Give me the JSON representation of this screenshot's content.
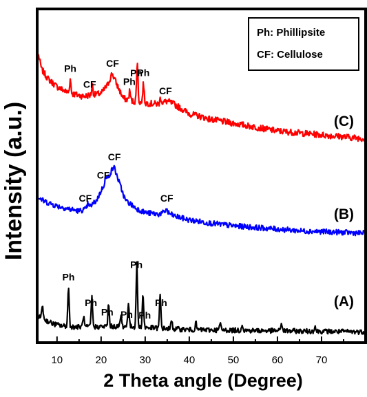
{
  "chart_data": {
    "type": "line",
    "xlabel": "2 Theta angle (Degree)",
    "ylabel": "Intensity (a.u.)",
    "xlim": [
      5.5,
      80
    ],
    "xticks": [
      10,
      20,
      30,
      40,
      50,
      60,
      70
    ],
    "yticks": "none",
    "grid": false,
    "legend": {
      "placement": "top-right",
      "entries": [
        "Ph: Phillipsite",
        "CF: Cellulose"
      ]
    },
    "series": [
      {
        "name": "(C)",
        "color": "#ff0000",
        "peaks": [
          [
            13.0,
            "Ph"
          ],
          [
            18.0,
            "CF"
          ],
          [
            22.5,
            "CF"
          ],
          [
            26.5,
            "Ph"
          ],
          [
            28.2,
            "Ph"
          ],
          [
            29.6,
            "Ph"
          ],
          [
            33.5,
            "CF"
          ]
        ],
        "profile": [
          [
            5.8,
            0.93
          ],
          [
            6.5,
            0.78
          ],
          [
            8,
            0.68
          ],
          [
            10,
            0.6
          ],
          [
            12,
            0.55
          ],
          [
            14,
            0.52
          ],
          [
            16,
            0.5
          ],
          [
            20,
            0.53
          ],
          [
            21.5,
            0.62
          ],
          [
            22.5,
            0.74
          ],
          [
            23.5,
            0.63
          ],
          [
            25,
            0.48
          ],
          [
            27,
            0.45
          ],
          [
            30,
            0.43
          ],
          [
            33,
            0.42
          ],
          [
            35,
            0.45
          ],
          [
            36.5,
            0.42
          ],
          [
            40,
            0.32
          ],
          [
            45,
            0.26
          ],
          [
            50,
            0.22
          ],
          [
            55,
            0.18
          ],
          [
            60,
            0.14
          ],
          [
            65,
            0.12
          ],
          [
            70,
            0.1
          ],
          [
            75,
            0.08
          ],
          [
            80,
            0.06
          ]
        ],
        "sharp_peaks": [
          [
            13.0,
            0.14
          ],
          [
            18.0,
            0.1
          ],
          [
            26.5,
            0.1
          ],
          [
            28.2,
            0.42
          ],
          [
            29.6,
            0.2
          ],
          [
            33.5,
            0.06
          ]
        ]
      },
      {
        "name": "(B)",
        "color": "#0000ff",
        "peaks": [
          [
            17.0,
            "CF"
          ],
          [
            21.0,
            "CF"
          ],
          [
            22.9,
            "CF"
          ],
          [
            34.8,
            "CF"
          ]
        ],
        "profile": [
          [
            5.8,
            0.48
          ],
          [
            7,
            0.44
          ],
          [
            10,
            0.38
          ],
          [
            13,
            0.34
          ],
          [
            15,
            0.32
          ],
          [
            17,
            0.35
          ],
          [
            19,
            0.45
          ],
          [
            20.5,
            0.62
          ],
          [
            21.5,
            0.72
          ],
          [
            22.9,
            0.86
          ],
          [
            24,
            0.68
          ],
          [
            25.5,
            0.45
          ],
          [
            28,
            0.35
          ],
          [
            30,
            0.3
          ],
          [
            33,
            0.28
          ],
          [
            34.8,
            0.31
          ],
          [
            36.5,
            0.26
          ],
          [
            40,
            0.21
          ],
          [
            45,
            0.17
          ],
          [
            50,
            0.14
          ],
          [
            55,
            0.12
          ],
          [
            60,
            0.1
          ],
          [
            65,
            0.08
          ],
          [
            70,
            0.07
          ],
          [
            75,
            0.06
          ],
          [
            80,
            0.05
          ]
        ],
        "sharp_peaks": [
          [
            17.0,
            0.06
          ],
          [
            21.0,
            0.06
          ],
          [
            34.8,
            0.04
          ]
        ]
      },
      {
        "name": "(A)",
        "color": "#000000",
        "peaks": [
          [
            12.6,
            "Ph"
          ],
          [
            17.9,
            "Ph"
          ],
          [
            21.7,
            "Ph"
          ],
          [
            26.2,
            "Ph"
          ],
          [
            28.1,
            "Ph"
          ],
          [
            29.5,
            "Ph"
          ],
          [
            33.4,
            "Ph"
          ]
        ],
        "profile": [
          [
            5.8,
            0.35
          ],
          [
            7,
            0.3
          ],
          [
            9,
            0.22
          ],
          [
            11,
            0.18
          ],
          [
            14,
            0.16
          ],
          [
            18,
            0.16
          ],
          [
            22,
            0.17
          ],
          [
            26,
            0.17
          ],
          [
            30,
            0.15
          ],
          [
            35,
            0.13
          ],
          [
            40,
            0.11
          ],
          [
            50,
            0.1
          ],
          [
            60,
            0.09
          ],
          [
            70,
            0.08
          ],
          [
            80,
            0.07
          ]
        ],
        "sharp_peaks": [
          [
            6.7,
            0.25
          ],
          [
            12.6,
            0.7
          ],
          [
            16.0,
            0.2
          ],
          [
            17.9,
            0.55
          ],
          [
            21.7,
            0.4
          ],
          [
            24.5,
            0.2
          ],
          [
            26.2,
            0.45
          ],
          [
            28.1,
            1.15
          ],
          [
            29.5,
            0.6
          ],
          [
            33.4,
            0.6
          ],
          [
            36.0,
            0.15
          ],
          [
            41.5,
            0.12
          ],
          [
            47.0,
            0.12
          ],
          [
            52.0,
            0.12
          ],
          [
            60.9,
            0.15
          ],
          [
            68.5,
            0.1
          ]
        ]
      }
    ],
    "annotations": [
      {
        "series": "(C)",
        "text": "Ph",
        "x": 13.0
      },
      {
        "series": "(C)",
        "text": "CF",
        "x": 17.4
      },
      {
        "series": "(C)",
        "text": "CF",
        "x": 22.6
      },
      {
        "series": "(C)",
        "text": "Ph",
        "x": 26.4
      },
      {
        "series": "(C)",
        "text": "Ph",
        "x": 28.0
      },
      {
        "series": "(C)",
        "text": "Ph",
        "x": 29.6
      },
      {
        "series": "(C)",
        "text": "CF",
        "x": 34.6
      },
      {
        "series": "(B)",
        "text": "CF",
        "x": 16.4
      },
      {
        "series": "(B)",
        "text": "CF",
        "x": 20.5
      },
      {
        "series": "(B)",
        "text": "CF",
        "x": 23.0
      },
      {
        "series": "(B)",
        "text": "CF",
        "x": 34.9
      },
      {
        "series": "(A)",
        "text": "Ph",
        "x": 12.6
      },
      {
        "series": "(A)",
        "text": "Ph",
        "x": 17.7
      },
      {
        "series": "(A)",
        "text": "Ph",
        "x": 21.4
      },
      {
        "series": "(A)",
        "text": "Ph",
        "x": 25.8
      },
      {
        "series": "(A)",
        "text": "Ph",
        "x": 28.0
      },
      {
        "series": "(A)",
        "text": "Ph",
        "x": 29.9
      },
      {
        "series": "(A)",
        "text": "Ph",
        "x": 33.6
      }
    ]
  }
}
